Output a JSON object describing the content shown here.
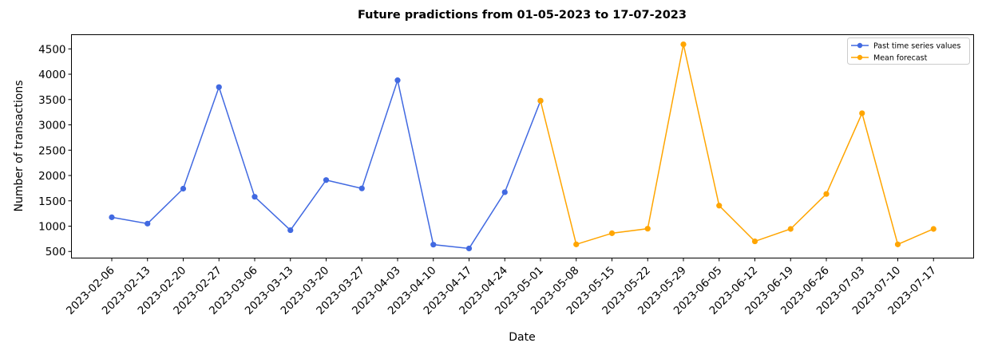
{
  "chart_data": {
    "type": "line",
    "title": "Future pradictions from 01-05-2023 to 17-07-2023",
    "xlabel": "Date",
    "ylabel": "Number of transactions",
    "categories": [
      "2023-02-06",
      "2023-02-13",
      "2023-02-20",
      "2023-02-27",
      "2023-03-06",
      "2023-03-13",
      "2023-03-20",
      "2023-03-27",
      "2023-04-03",
      "2023-04-10",
      "2023-04-17",
      "2023-04-24",
      "2023-05-01",
      "2023-05-08",
      "2023-05-15",
      "2023-05-22",
      "2023-05-29",
      "2023-06-05",
      "2023-06-12",
      "2023-06-19",
      "2023-06-26",
      "2023-07-03",
      "2023-07-10",
      "2023-07-17"
    ],
    "ylim": [
      370,
      4780
    ],
    "yticks": [
      500,
      1000,
      1500,
      2000,
      2500,
      3000,
      3500,
      4000,
      4500
    ],
    "grid": false,
    "legend_position": "top-right",
    "series": [
      {
        "name": "Past time series values",
        "color": "#4169e1",
        "x": [
          "2023-02-06",
          "2023-02-13",
          "2023-02-20",
          "2023-02-27",
          "2023-03-06",
          "2023-03-13",
          "2023-03-20",
          "2023-03-27",
          "2023-04-03",
          "2023-04-10",
          "2023-04-17",
          "2023-04-24",
          "2023-05-01"
        ],
        "values": [
          1175,
          1050,
          1740,
          3745,
          1580,
          920,
          1910,
          1745,
          3880,
          635,
          560,
          1670,
          3475
        ]
      },
      {
        "name": "Mean forecast",
        "color": "#ffa500",
        "x": [
          "2023-05-01",
          "2023-05-08",
          "2023-05-15",
          "2023-05-22",
          "2023-05-29",
          "2023-06-05",
          "2023-06-12",
          "2023-06-19",
          "2023-06-26",
          "2023-07-03",
          "2023-07-10",
          "2023-07-17"
        ],
        "values": [
          3475,
          640,
          860,
          950,
          4590,
          1405,
          700,
          945,
          1635,
          3230,
          640,
          945
        ]
      }
    ]
  }
}
